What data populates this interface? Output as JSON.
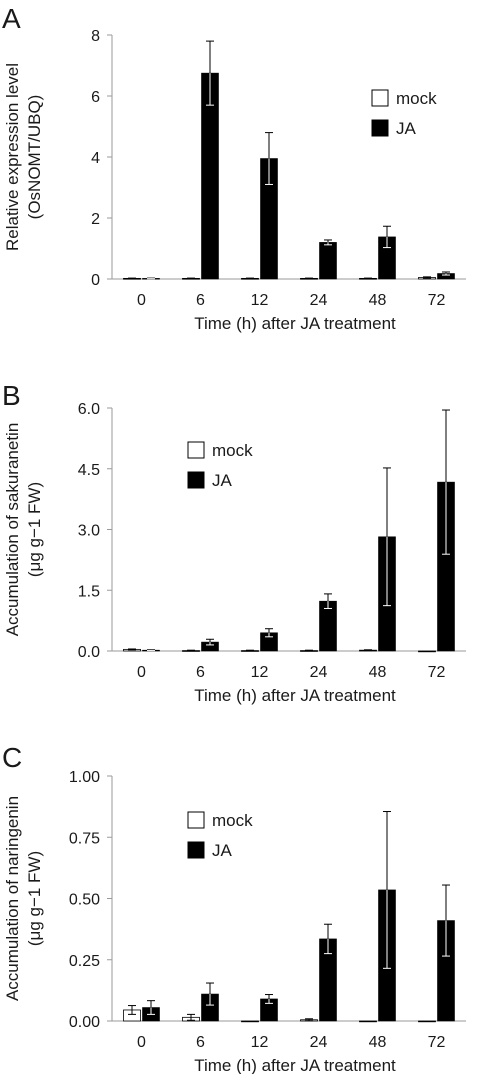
{
  "chart_data": [
    {
      "panel": "A",
      "type": "bar",
      "categories": [
        "0",
        "6",
        "12",
        "24",
        "48",
        "72"
      ],
      "ylim": [
        0,
        8
      ],
      "yticks": [
        "0",
        "2",
        "4",
        "6",
        "8"
      ],
      "xlabel": "Time (h) after JA treatment",
      "ylabel_line1": "Relative expression level",
      "ylabel_line2": "(OsNOMT/UBQ)",
      "legend_position": "right",
      "series": [
        {
          "name": "mock",
          "color": "#ffffff",
          "values": [
            0.02,
            0.02,
            0.02,
            0.02,
            0.02,
            0.05
          ],
          "errors": [
            0.01,
            0.01,
            0.01,
            0.01,
            0.01,
            0.02
          ]
        },
        {
          "name": "JA",
          "color": "#000000",
          "values": [
            0.02,
            6.75,
            3.95,
            1.2,
            1.38,
            0.18
          ],
          "errors": [
            0.01,
            1.05,
            0.85,
            0.08,
            0.35,
            0.05
          ]
        }
      ]
    },
    {
      "panel": "B",
      "type": "bar",
      "categories": [
        "0",
        "6",
        "12",
        "24",
        "48",
        "72"
      ],
      "ylim": [
        0,
        6
      ],
      "yticks": [
        "0.0",
        "1.5",
        "3.0",
        "4.5",
        "6.0"
      ],
      "xlabel": "Time (h) after JA treatment",
      "ylabel_line1": "Accumulation of sakuranetin",
      "ylabel_line2": "(μg g−1 FW)",
      "legend_position": "top-left",
      "series": [
        {
          "name": "mock",
          "color": "#ffffff",
          "values": [
            0.04,
            0.01,
            0.01,
            0.01,
            0.02,
            0.0
          ],
          "errors": [
            0.01,
            0.01,
            0.01,
            0.01,
            0.01,
            0.0
          ]
        },
        {
          "name": "JA",
          "color": "#000000",
          "values": [
            0.02,
            0.22,
            0.45,
            1.23,
            2.82,
            4.17
          ],
          "errors": [
            0.01,
            0.07,
            0.1,
            0.18,
            1.7,
            1.78
          ]
        }
      ]
    },
    {
      "panel": "C",
      "type": "bar",
      "categories": [
        "0",
        "6",
        "12",
        "24",
        "48",
        "72"
      ],
      "ylim": [
        0,
        1
      ],
      "yticks": [
        "0.00",
        "0.25",
        "0.50",
        "0.75",
        "1.00"
      ],
      "xlabel": "Time (h) after JA treatment",
      "ylabel_line1": "Accumulation of naringenin",
      "ylabel_line2": "(μg g−1 FW)",
      "legend_position": "top-left",
      "series": [
        {
          "name": "mock",
          "color": "#ffffff",
          "values": [
            0.045,
            0.015,
            0.0,
            0.005,
            0.0,
            0.0
          ],
          "errors": [
            0.018,
            0.012,
            0.0,
            0.004,
            0.0,
            0.0
          ]
        },
        {
          "name": "JA",
          "color": "#000000",
          "values": [
            0.055,
            0.11,
            0.09,
            0.335,
            0.535,
            0.41
          ],
          "errors": [
            0.028,
            0.045,
            0.018,
            0.06,
            0.32,
            0.145
          ]
        }
      ]
    }
  ]
}
